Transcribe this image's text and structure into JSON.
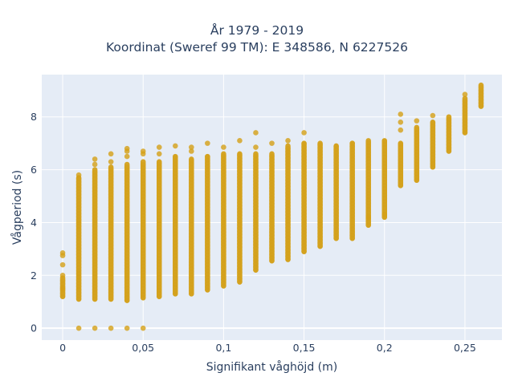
{
  "chart_data": {
    "type": "scatter",
    "title_line1": "År 1979 - 2019",
    "title_line2": "Koordinat (Sweref 99 TM): E 348586, N 6227526",
    "xlabel": "Signifikant våghöjd (m)",
    "ylabel": "Vågperiod (s)",
    "xlim": [
      -0.013,
      0.273
    ],
    "ylim": [
      -0.45,
      9.6
    ],
    "x_ticks": [
      0,
      0.05,
      0.1,
      0.15,
      0.2,
      0.25
    ],
    "x_tick_labels": [
      "0",
      "0,05",
      "0,1",
      "0,15",
      "0,2",
      "0,25"
    ],
    "y_ticks": [
      0,
      2,
      4,
      6,
      8
    ],
    "y_tick_labels": [
      "0",
      "2",
      "4",
      "6",
      "8"
    ],
    "grid": true,
    "marker_color": "#d4a017",
    "plot_background": "#e5ecf6",
    "columns": [
      {
        "x": 0.0,
        "ymin": 1.2,
        "ymax": 1.9,
        "outliers": [
          1.5,
          2.0,
          2.4,
          2.75,
          2.85
        ]
      },
      {
        "x": 0.01,
        "ymin": 1.1,
        "ymax": 5.7,
        "outliers": [
          0,
          5.8
        ]
      },
      {
        "x": 0.02,
        "ymin": 1.1,
        "ymax": 6.0,
        "outliers": [
          0,
          6.2,
          6.4
        ]
      },
      {
        "x": 0.03,
        "ymin": 1.1,
        "ymax": 6.1,
        "outliers": [
          0,
          6.3,
          6.6
        ]
      },
      {
        "x": 0.04,
        "ymin": 1.05,
        "ymax": 6.2,
        "outliers": [
          0,
          6.5,
          6.7,
          6.8
        ]
      },
      {
        "x": 0.05,
        "ymin": 1.15,
        "ymax": 6.3,
        "outliers": [
          0,
          6.6,
          6.7
        ]
      },
      {
        "x": 0.06,
        "ymin": 1.2,
        "ymax": 6.3,
        "outliers": [
          6.6,
          6.85
        ]
      },
      {
        "x": 0.07,
        "ymin": 1.3,
        "ymax": 6.5,
        "outliers": [
          6.9
        ]
      },
      {
        "x": 0.08,
        "ymin": 1.3,
        "ymax": 6.4,
        "outliers": [
          6.7,
          6.85
        ]
      },
      {
        "x": 0.09,
        "ymin": 1.45,
        "ymax": 6.5,
        "outliers": [
          7.0
        ]
      },
      {
        "x": 0.1,
        "ymin": 1.6,
        "ymax": 6.6,
        "outliers": [
          6.85
        ]
      },
      {
        "x": 0.11,
        "ymin": 1.75,
        "ymax": 6.6,
        "outliers": [
          7.1
        ]
      },
      {
        "x": 0.12,
        "ymin": 2.2,
        "ymax": 6.6,
        "outliers": [
          6.85,
          7.4
        ]
      },
      {
        "x": 0.13,
        "ymin": 2.55,
        "ymax": 6.6,
        "outliers": [
          7.0
        ]
      },
      {
        "x": 0.14,
        "ymin": 2.6,
        "ymax": 6.9,
        "outliers": [
          7.1
        ]
      },
      {
        "x": 0.15,
        "ymin": 2.9,
        "ymax": 7.0,
        "outliers": [
          7.4
        ]
      },
      {
        "x": 0.16,
        "ymin": 3.1,
        "ymax": 7.0,
        "outliers": []
      },
      {
        "x": 0.17,
        "ymin": 3.4,
        "ymax": 6.9,
        "outliers": []
      },
      {
        "x": 0.18,
        "ymin": 3.4,
        "ymax": 7.0,
        "outliers": []
      },
      {
        "x": 0.19,
        "ymin": 3.9,
        "ymax": 7.1,
        "outliers": [
          4.2
        ]
      },
      {
        "x": 0.2,
        "ymin": 4.2,
        "ymax": 7.1,
        "outliers": [
          4.3
        ]
      },
      {
        "x": 0.21,
        "ymin": 5.4,
        "ymax": 7.0,
        "outliers": [
          7.5,
          7.8,
          8.1
        ]
      },
      {
        "x": 0.22,
        "ymin": 5.6,
        "ymax": 7.6,
        "outliers": [
          7.85
        ]
      },
      {
        "x": 0.23,
        "ymin": 6.1,
        "ymax": 7.8,
        "outliers": [
          8.05
        ]
      },
      {
        "x": 0.24,
        "ymin": 6.7,
        "ymax": 8.0,
        "outliers": []
      },
      {
        "x": 0.25,
        "ymin": 7.4,
        "ymax": 8.7,
        "outliers": [
          8.85
        ]
      },
      {
        "x": 0.26,
        "ymin": 8.4,
        "ymax": 9.2,
        "outliers": []
      }
    ]
  }
}
